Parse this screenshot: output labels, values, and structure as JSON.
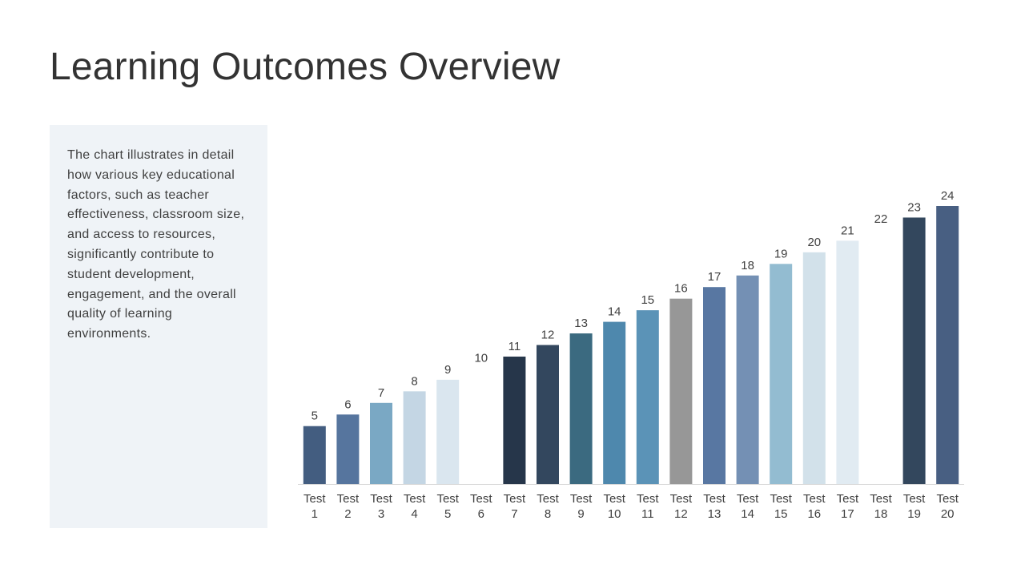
{
  "slide": {
    "title": "Learning Outcomes Overview",
    "description": "The chart illustrates in detail how various key educational factors, such as teacher effectiveness, classroom size, and access to resources, significantly contribute to student development, engagement, and the overall quality of learning environments."
  },
  "chart_data": {
    "type": "bar",
    "categories": [
      [
        "Test",
        "1"
      ],
      [
        "Test",
        "2"
      ],
      [
        "Test",
        "3"
      ],
      [
        "Test",
        "4"
      ],
      [
        "Test",
        "5"
      ],
      [
        "Test",
        "6"
      ],
      [
        "Test",
        "7"
      ],
      [
        "Test",
        "8"
      ],
      [
        "Test",
        "9"
      ],
      [
        "Test",
        "10"
      ],
      [
        "Test",
        "11"
      ],
      [
        "Test",
        "12"
      ],
      [
        "Test",
        "13"
      ],
      [
        "Test",
        "14"
      ],
      [
        "Test",
        "15"
      ],
      [
        "Test",
        "16"
      ],
      [
        "Test",
        "17"
      ],
      [
        "Test",
        "18"
      ],
      [
        "Test",
        "19"
      ],
      [
        "Test",
        "20"
      ]
    ],
    "values": [
      5,
      6,
      7,
      8,
      9,
      10,
      11,
      12,
      13,
      14,
      15,
      16,
      17,
      18,
      19,
      20,
      21,
      22,
      23,
      24
    ],
    "data_labels": [
      "5",
      "6",
      "7",
      "8",
      "9",
      "10",
      "11",
      "12",
      "13",
      "14",
      "15",
      "16",
      "17",
      "18",
      "19",
      "20",
      "21",
      "22",
      "23",
      "24"
    ],
    "bar_colors": [
      "#435d80",
      "#56759e",
      "#7aa8c4",
      "#c4d6e4",
      "#dae6ef",
      "#ffffff",
      "#26364a",
      "#33475e",
      "#3b6a80",
      "#4e88ad",
      "#5b93b7",
      "#979797",
      "#5877a2",
      "#7490b4",
      "#93bcd1",
      "#d2e1ea",
      "#e1ebf2",
      "#ffffff",
      "#33475d",
      "#485f82"
    ],
    "baseline_color": "#d9d9d9",
    "label_color": "#404040",
    "ylim": [
      0,
      24
    ],
    "xlabel": "",
    "ylabel": "",
    "grid": false,
    "legend": "none"
  }
}
